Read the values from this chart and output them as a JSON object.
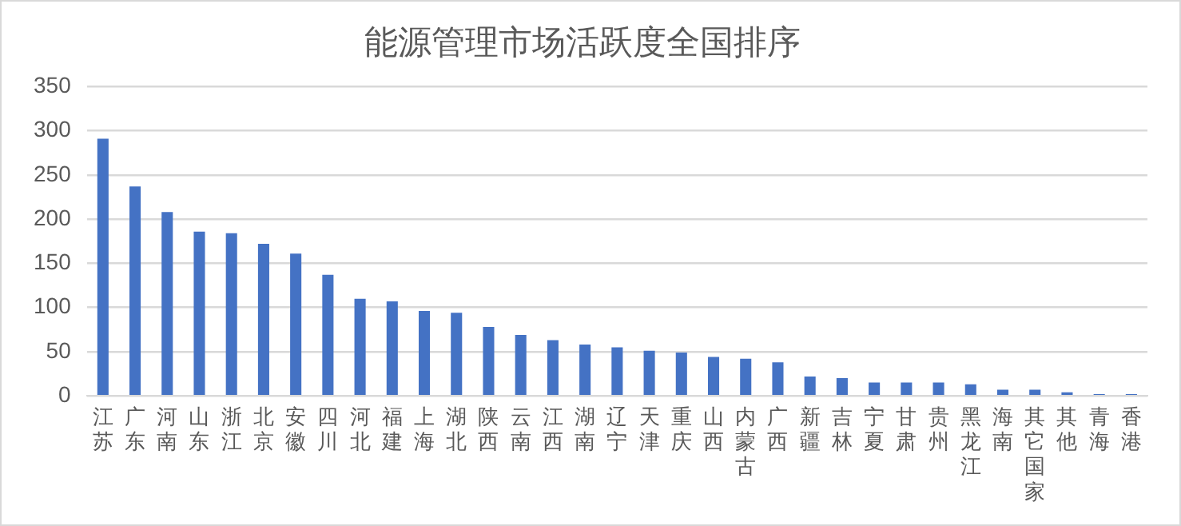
{
  "chart_data": {
    "type": "bar",
    "title": "能源管理市场活跃度全国排序",
    "categories": [
      "江苏",
      "广东",
      "河南",
      "山东",
      "浙江",
      "北京",
      "安徽",
      "四川",
      "河北",
      "福建",
      "上海",
      "湖北",
      "陕西",
      "云南",
      "江西",
      "湖南",
      "辽宁",
      "天津",
      "重庆",
      "山西",
      "内蒙古",
      "广西",
      "新疆",
      "吉林",
      "宁夏",
      "甘肃",
      "贵州",
      "黑龙江",
      "海南",
      "其它国家",
      "其他",
      "青海",
      "香港"
    ],
    "values": [
      291,
      237,
      208,
      186,
      184,
      172,
      161,
      137,
      110,
      107,
      96,
      94,
      78,
      69,
      63,
      58,
      55,
      51,
      49,
      44,
      42,
      38,
      22,
      20,
      15,
      15,
      15,
      13,
      7,
      7,
      4,
      2,
      2
    ],
    "color": "#4472c4",
    "ylim": [
      0,
      350
    ],
    "yticks": [
      0,
      50,
      100,
      150,
      200,
      250,
      300,
      350
    ],
    "grid": "y",
    "legend": false
  }
}
